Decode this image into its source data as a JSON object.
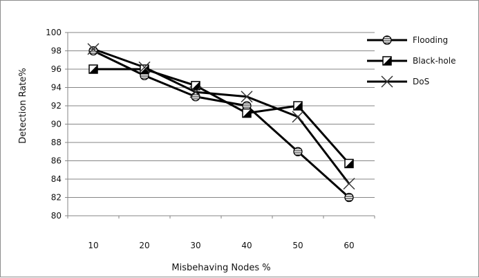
{
  "chart_data": {
    "type": "line",
    "title": "",
    "xlabel": "Misbehaving Nodes %",
    "ylabel": "Detection Rate%",
    "categories": [
      "10",
      "20",
      "30",
      "40",
      "50",
      "60"
    ],
    "x": [
      10,
      20,
      30,
      40,
      50,
      60
    ],
    "ylim": [
      80,
      100
    ],
    "yticks": [
      80,
      82,
      84,
      86,
      88,
      90,
      92,
      94,
      96,
      98,
      100
    ],
    "grid": "horizontal",
    "legend_position": "right",
    "series": [
      {
        "name": "Flooding",
        "marker": "circle-hatched",
        "color": "#000000",
        "values": [
          98,
          95.3,
          93,
          92,
          87,
          82
        ]
      },
      {
        "name": "Black-hole",
        "marker": "square-half",
        "color": "#000000",
        "values": [
          96,
          96,
          94.2,
          91.2,
          92,
          85.7
        ]
      },
      {
        "name": "DoS",
        "marker": "x",
        "color": "#000000",
        "values": [
          98.2,
          96.2,
          93.5,
          93,
          90.8,
          83.5
        ]
      }
    ]
  }
}
